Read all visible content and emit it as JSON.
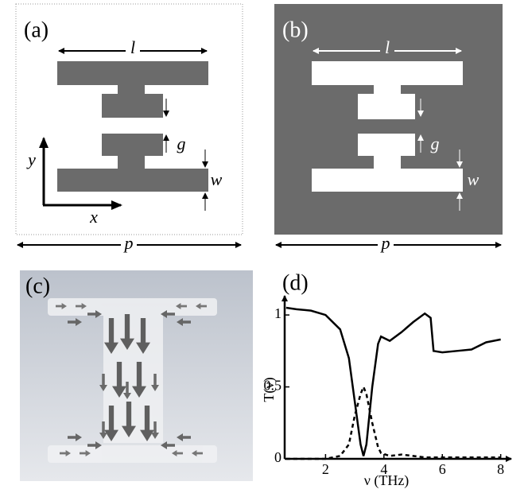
{
  "panel_a": {
    "label": "(a)",
    "dims": {
      "l": "l",
      "g": "g",
      "w": "w",
      "p": "p"
    },
    "axes": {
      "x": "x",
      "y": "y"
    }
  },
  "panel_b": {
    "label": "(b)",
    "dims": {
      "l": "l",
      "g": "g",
      "w": "w",
      "p": "p"
    }
  },
  "panel_c": {
    "label": "(c)"
  },
  "chart_data": {
    "type": "line",
    "label": "(d)",
    "xlabel": "ν (THz)",
    "ylabel": "T(ν)",
    "x": [
      0.65,
      1,
      1.5,
      2,
      2.5,
      2.8,
      3.0,
      3.2,
      3.3,
      3.4,
      3.6,
      3.8,
      3.9,
      4.2,
      4.6,
      5.0,
      5.4,
      5.6,
      5.7,
      6.0,
      6.5,
      7.0,
      7.5,
      8.0
    ],
    "series": [
      {
        "color": "#000000",
        "linestyle": "solid",
        "values": [
          1.05,
          1.04,
          1.03,
          1.0,
          0.9,
          0.7,
          0.4,
          0.1,
          0.02,
          0.1,
          0.5,
          0.8,
          0.85,
          0.82,
          0.88,
          0.95,
          1.01,
          0.98,
          0.75,
          0.74,
          0.75,
          0.76,
          0.81,
          0.83
        ]
      },
      {
        "color": "#000000",
        "linestyle": "dashed",
        "values": [
          0,
          0,
          0,
          0,
          0.02,
          0.1,
          0.3,
          0.45,
          0.5,
          0.45,
          0.25,
          0.08,
          0.04,
          0.02,
          0.03,
          0.02,
          0.01,
          0.01,
          0.01,
          0.01,
          0.01,
          0.01,
          0.01,
          0.01
        ]
      }
    ],
    "xlim": [
      0.6,
      8.2
    ],
    "ylim": [
      0,
      1.1
    ],
    "xticks": [
      2,
      4,
      6,
      8
    ],
    "yticks": [
      0,
      0.5,
      1
    ]
  }
}
